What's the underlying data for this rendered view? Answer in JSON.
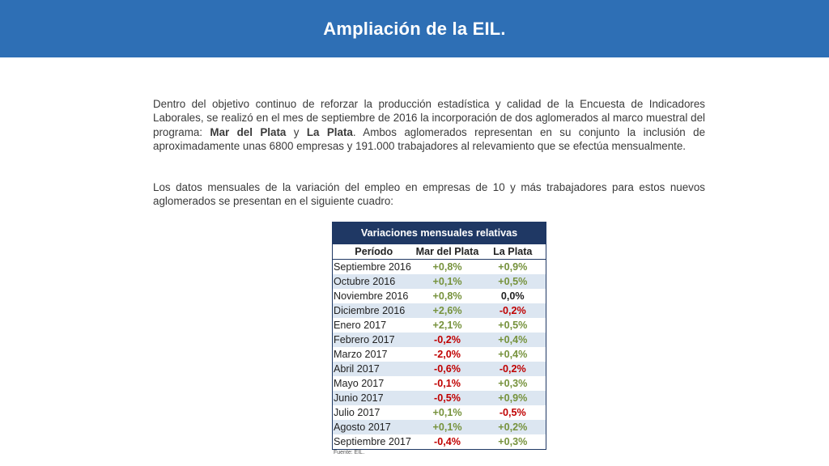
{
  "header": {
    "title": "Ampliación de la EIL."
  },
  "paragraph1": {
    "text_a": "Dentro del objetivo continuo de reforzar la producción estadística y calidad de la Encuesta de Indicadores Laborales, se realizó en el mes de septiembre de 2016 la incorporación de dos aglomerados al marco muestral del programa: ",
    "city1": "Mar del Plata",
    "conj": " y ",
    "city2": "La Plata",
    "text_b": ". Ambos aglomerados representan en su conjunto la inclusión de aproximadamente unas 6800 empresas y 191.000 trabajadores al relevamiento que se efectúa mensualmente."
  },
  "paragraph2": {
    "text": "Los datos mensuales de la variación del empleo en empresas de 10 y más trabajadores para estos nuevos aglomerados se presentan en el siguiente cuadro:"
  },
  "table": {
    "title": "Variaciones mensuales relativas",
    "columns": [
      "Período",
      "Mar del Plata",
      "La Plata"
    ],
    "rows": [
      {
        "period": "Septiembre 2016",
        "mdp": "+0,8%",
        "lp": "+0,9%"
      },
      {
        "period": "Octubre 2016",
        "mdp": "+0,1%",
        "lp": "+0,5%"
      },
      {
        "period": "Noviembre 2016",
        "mdp": "+0,8%",
        "lp": "0,0%"
      },
      {
        "period": "Diciembre 2016",
        "mdp": "+2,6%",
        "lp": "-0,2%"
      },
      {
        "period": "Enero 2017",
        "mdp": "+2,1%",
        "lp": "+0,5%"
      },
      {
        "period": "Febrero 2017",
        "mdp": "-0,2%",
        "lp": "+0,4%"
      },
      {
        "period": "Marzo 2017",
        "mdp": "-2,0%",
        "lp": "+0,4%"
      },
      {
        "period": "Abril 2017",
        "mdp": "-0,6%",
        "lp": "-0,2%"
      },
      {
        "period": "Mayo 2017",
        "mdp": "-0,1%",
        "lp": "+0,3%"
      },
      {
        "period": "Junio 2017",
        "mdp": "-0,5%",
        "lp": "+0,9%"
      },
      {
        "period": "Julio 2017",
        "mdp": "+0,1%",
        "lp": "-0,5%"
      },
      {
        "period": "Agosto 2017",
        "mdp": "+0,1%",
        "lp": "+0,2%"
      },
      {
        "period": "Septiembre 2017",
        "mdp": "-0,4%",
        "lp": "+0,3%"
      }
    ],
    "source": "Fuente: EIL."
  },
  "colors": {
    "header_bg": "#2e6fb5",
    "table_title_bg": "#1f3864",
    "positive": "#76923c",
    "negative": "#c00000",
    "neutral": "#222222",
    "stripe": "#dce6f1"
  }
}
